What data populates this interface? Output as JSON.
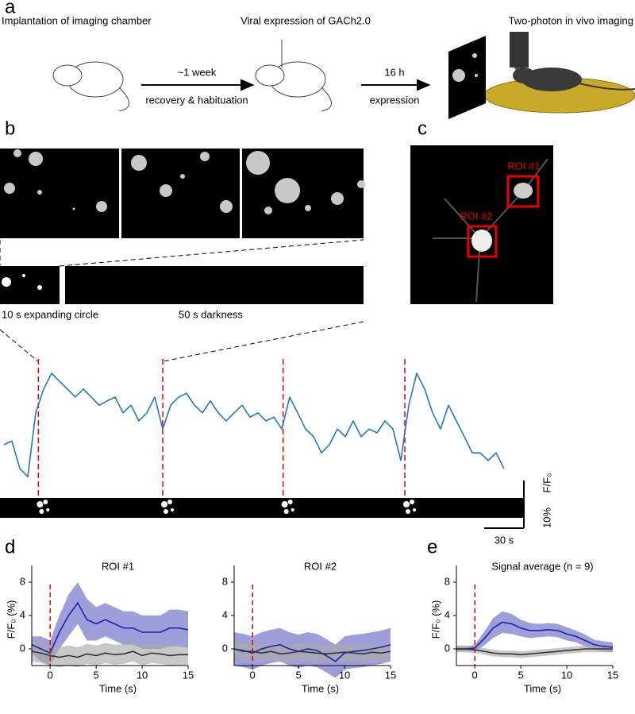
{
  "panel_labels": [
    "a",
    "b",
    "c",
    "d",
    "e"
  ],
  "panel_a": {
    "steps": [
      "Implantation of imaging chamber",
      "Viral expression of GACh2.0",
      "Two-photon in vivo imaging"
    ],
    "arrows": [
      {
        "top": "~1 week",
        "bottom": "recovery & habituation"
      },
      {
        "top": "16 h",
        "bottom": "expression"
      }
    ]
  },
  "panel_b": {
    "captions": [
      "10 s expanding circle",
      "50 s darkness"
    ]
  },
  "panel_c": {
    "rois": [
      "ROI #1",
      "ROI #2"
    ]
  },
  "chart_data": [
    {
      "type": "trace",
      "color": "#1f77c4",
      "y_label": "F/F₀",
      "x": [
        0,
        6,
        12,
        18,
        24,
        30,
        36,
        42,
        48,
        54,
        60,
        66,
        72,
        78,
        84,
        90,
        96,
        102,
        108,
        114,
        120,
        126,
        132,
        138,
        144,
        150,
        156,
        162,
        168,
        174,
        180,
        186,
        192,
        198,
        204,
        210,
        216,
        222,
        228,
        234,
        240,
        246,
        252,
        258,
        264,
        270,
        276,
        282,
        288,
        294,
        300,
        306,
        312,
        318,
        324,
        330,
        336,
        342,
        348,
        354,
        360,
        366,
        372,
        378
      ],
      "values": [
        0,
        0.8,
        -5,
        -6.7,
        6.7,
        11.7,
        15,
        13.3,
        11.7,
        10,
        11.7,
        10,
        8.3,
        9.2,
        10,
        6.7,
        8.3,
        5,
        6.7,
        10,
        3.3,
        8.3,
        10,
        10.8,
        8.3,
        6.7,
        9.2,
        6.7,
        5,
        6.7,
        8.3,
        5.8,
        6.7,
        5,
        5.8,
        3.3,
        10,
        6.7,
        3.3,
        1.7,
        -1.7,
        0,
        3.3,
        1.7,
        5,
        1.7,
        3.3,
        2.5,
        5,
        3.3,
        -3.3,
        8.3,
        15,
        11.7,
        6.7,
        3.3,
        8.3,
        5,
        1.7,
        -1.7,
        -1.7,
        -3.3,
        -1.7,
        -5
      ],
      "stimulus_onsets": [
        26,
        120,
        211,
        303
      ],
      "scale_bars": [
        {
          "label": "30 s",
          "value": 30
        },
        {
          "label": "10%",
          "value": 10
        }
      ]
    },
    {
      "type": "line",
      "title": "ROI #1",
      "x_label": "Time (s)",
      "y_label": "F/F₀ (%)",
      "xlim": [
        -2,
        15
      ],
      "ylim": [
        -2,
        10
      ],
      "xticks": [
        0,
        5,
        10,
        15
      ],
      "yticks": [
        0,
        4,
        8
      ],
      "vline": 0,
      "x": [
        -2,
        -1,
        0,
        1,
        2,
        3,
        4,
        5,
        6,
        7,
        8,
        9,
        10,
        11,
        12,
        13,
        14,
        15
      ],
      "series": [
        {
          "color": "#1f1fa8",
          "band_color": "#6a6ac8",
          "values": [
            0.5,
            0,
            -0.5,
            2,
            4,
            5.5,
            3.5,
            3,
            3.5,
            3,
            2.5,
            2.5,
            2,
            2,
            2,
            2.5,
            2.5,
            2.3
          ],
          "error": [
            1,
            1.5,
            1.5,
            2,
            2.5,
            2.5,
            2.5,
            2,
            2,
            2,
            2,
            2,
            2,
            2,
            2,
            2.2,
            2.2,
            2.2
          ]
        },
        {
          "color": "#333333",
          "band_color": "#aaaaaa",
          "values": [
            -0.3,
            -0.5,
            -0.8,
            -1,
            -0.8,
            -1,
            -0.6,
            -0.8,
            -0.5,
            -0.7,
            -0.6,
            -0.3,
            -0.8,
            -0.5,
            -0.6,
            -0.8,
            -0.7,
            -0.7
          ],
          "error": [
            1.2,
            1.2,
            1.2,
            1.2,
            1.2,
            1.2,
            1.2,
            1.2,
            1.2,
            1.2,
            1.2,
            1.2,
            1.2,
            1.2,
            1.2,
            1.2,
            1.2,
            1.2
          ]
        }
      ]
    },
    {
      "type": "line",
      "title": "ROI #2",
      "x_label": "Time (s)",
      "xlim": [
        -2,
        15
      ],
      "ylim": [
        -2,
        10
      ],
      "xticks": [
        0,
        5,
        10,
        15
      ],
      "yticks": [
        0,
        4,
        8
      ],
      "vline": 0,
      "x": [
        -2,
        -1,
        0,
        1,
        2,
        3,
        4,
        5,
        6,
        7,
        8,
        9,
        10,
        11,
        12,
        13,
        14,
        15
      ],
      "series": [
        {
          "color": "#1f1fa8",
          "band_color": "#6a6ac8",
          "values": [
            0,
            -0.2,
            -0.5,
            0,
            0.3,
            0.5,
            0,
            -0.3,
            0,
            -0.2,
            -0.8,
            -1.5,
            -0.5,
            -0.3,
            -0.2,
            0,
            0.2,
            0.5
          ],
          "error": [
            2,
            2,
            2,
            2,
            2,
            2,
            2,
            2,
            2,
            2,
            2,
            2,
            2,
            2,
            2,
            2,
            2,
            2
          ]
        },
        {
          "color": "#333333",
          "band_color": "#aaaaaa",
          "values": [
            0,
            -0.3,
            -0.3,
            -0.5,
            -0.3,
            -0.6,
            -0.5,
            -0.3,
            -0.4,
            -0.5,
            -0.6,
            -0.5,
            -0.4,
            -0.5,
            -0.6,
            -0.4,
            -0.5,
            -0.3
          ],
          "error": [
            1,
            1,
            1,
            1,
            1,
            1,
            1,
            1,
            1,
            1,
            1,
            1,
            1,
            1,
            1,
            1,
            1,
            1
          ]
        }
      ]
    },
    {
      "type": "line",
      "title": "Signal average (n = 9)",
      "x_label": "Time (s)",
      "y_label": "F/F₀ (%)",
      "xlim": [
        -2,
        15
      ],
      "ylim": [
        -2,
        10
      ],
      "xticks": [
        0,
        5,
        10,
        15
      ],
      "yticks": [
        0,
        4,
        8
      ],
      "vline": 0,
      "x": [
        -2,
        -1,
        0,
        1,
        2,
        3,
        4,
        5,
        6,
        7,
        8,
        9,
        10,
        11,
        12,
        13,
        14,
        15
      ],
      "series": [
        {
          "color": "#1f1fa8",
          "band_color": "#6a6ac8",
          "values": [
            0,
            0,
            0.1,
            1.2,
            2.5,
            3.2,
            3,
            2.5,
            2.2,
            2.2,
            2.3,
            2.2,
            1.8,
            1.5,
            1,
            0.5,
            0.3,
            0.2
          ],
          "error": [
            0.3,
            0.3,
            0.4,
            0.8,
            1.2,
            1.3,
            1.2,
            1,
            0.9,
            0.8,
            0.8,
            0.8,
            0.8,
            0.7,
            0.7,
            0.6,
            0.6,
            0.6
          ]
        },
        {
          "color": "#333333",
          "band_color": "#aaaaaa",
          "values": [
            0,
            0,
            -0.1,
            -0.3,
            -0.5,
            -0.6,
            -0.6,
            -0.7,
            -0.6,
            -0.5,
            -0.4,
            -0.3,
            -0.2,
            -0.1,
            0,
            0,
            0,
            0
          ],
          "error": [
            0.4,
            0.4,
            0.4,
            0.4,
            0.4,
            0.4,
            0.4,
            0.4,
            0.4,
            0.4,
            0.4,
            0.4,
            0.4,
            0.4,
            0.4,
            0.4,
            0.4,
            0.4
          ]
        }
      ]
    }
  ]
}
